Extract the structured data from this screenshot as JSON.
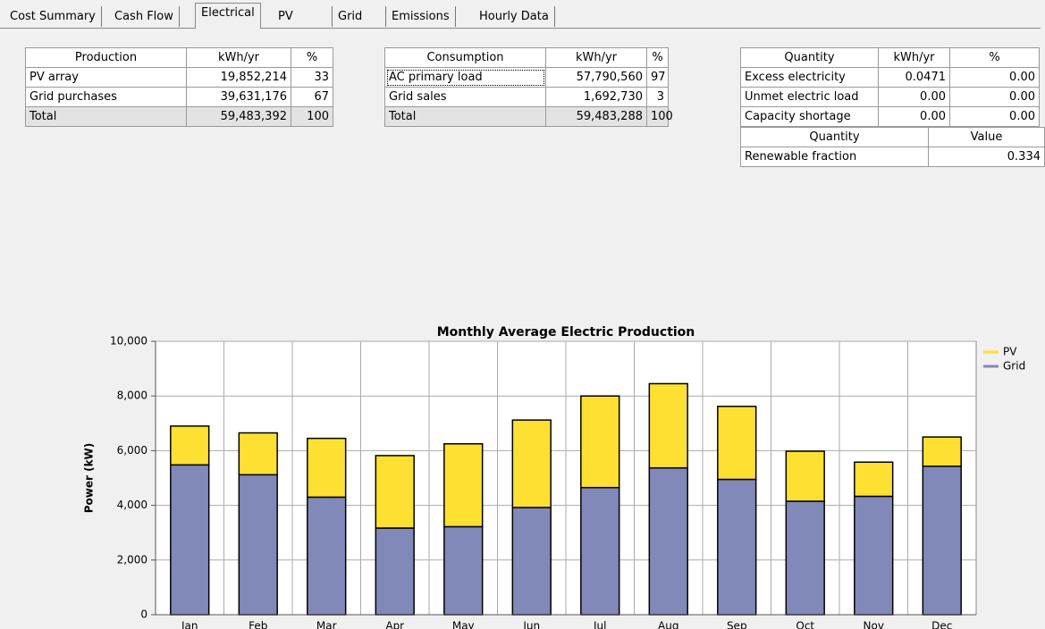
{
  "tabs": [
    "Cost Summary",
    "Cash Flow",
    "Electrical",
    "PV",
    "Grid",
    "Emissions",
    "Hourly Data"
  ],
  "tables": [
    {
      "header": [
        "Production",
        "kWh/yr",
        "%"
      ],
      "rows": [
        [
          "PV array",
          "19,852,214",
          "33"
        ],
        [
          "Grid purchases",
          "39,631,176",
          "67"
        ],
        [
          "Total",
          "59,483,392",
          "100"
        ]
      ]
    },
    {
      "header": [
        "Consumption",
        "kWh/yr",
        "%"
      ],
      "rows": [
        [
          "AC primary load",
          "57,790,560",
          "97"
        ],
        [
          "Grid sales",
          "1,692,730",
          "3"
        ],
        [
          "Total",
          "59,483,288",
          "100"
        ]
      ]
    },
    {
      "header": [
        "Quantity",
        "kWh/yr",
        "%"
      ],
      "rows": [
        [
          "Excess electricity",
          "0.0471",
          "0.00"
        ],
        [
          "Unmet electric load",
          "0.00",
          "0.00"
        ],
        [
          "Capacity shortage",
          "0.00",
          "0.00"
        ]
      ]
    },
    {
      "header": [
        "Quantity",
        "Value"
      ],
      "rows": [
        [
          "Renewable fraction",
          "0.334"
        ]
      ]
    }
  ],
  "chart_data": {
    "type": "stacked_bar",
    "title": "Monthly Average Electric Production",
    "y_label": "Power (kW)",
    "categories": [
      "Jan",
      "Feb",
      "Mar",
      "Apr",
      "May",
      "Jun",
      "Jul",
      "Aug",
      "Sep",
      "Oct",
      "Nov",
      "Dec"
    ],
    "series": [
      {
        "name": "PV",
        "color": "#fde031",
        "values": [
          1420,
          1530,
          2150,
          2650,
          3030,
          3200,
          3350,
          3080,
          2670,
          1830,
          1250,
          1070
        ]
      },
      {
        "name": "Grid",
        "color": "#8189b9",
        "values": [
          5480,
          5120,
          4300,
          3170,
          3220,
          3920,
          4650,
          5370,
          4950,
          4150,
          4330,
          5430
        ]
      }
    ],
    "ylim": [
      0,
      10000
    ],
    "yticks": [
      0,
      {
        "value": 2000,
        "label": "2,000"
      },
      {
        "value": 4000,
        "label": "4,000"
      },
      {
        "value": 6000,
        "label": "6,000"
      },
      {
        "value": 8000,
        "label": "8,000"
      },
      {
        "value": 10000,
        "label": "10,000"
      }
    ],
    "grid": true,
    "legend": "right"
  }
}
